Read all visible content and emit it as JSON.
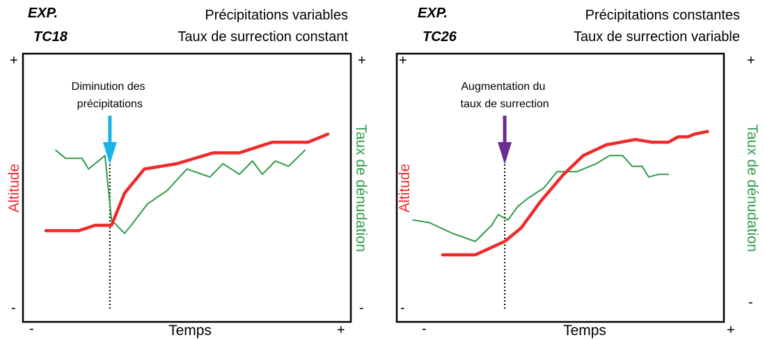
{
  "chart_data": [
    {
      "type": "line",
      "experiment_label": [
        "EXP.",
        "TC18"
      ],
      "conditions": [
        "Précipitations variables",
        "Taux de surrection constant"
      ],
      "xlabel": "Temps",
      "ylabel_left": "Altitude",
      "ylabel_right": "Taux de dénudation",
      "x_ticks": [
        "-",
        "+"
      ],
      "y_ticks_left": [
        "+",
        "-"
      ],
      "y_ticks_right": [
        "+",
        "-"
      ],
      "xlim": [
        0,
        100
      ],
      "ylim": [
        0,
        100
      ],
      "annotation": {
        "text": [
          "Diminution des",
          "précipitations"
        ],
        "x": 26.5,
        "arrow_color": "#1ab3e6"
      },
      "series": [
        {
          "name": "Altitude",
          "color": "#ee2a2a",
          "x": [
            7,
            17,
            22,
            27,
            31,
            37,
            47,
            58,
            66,
            76,
            87,
            93
          ],
          "y": [
            34,
            34,
            36,
            36,
            48,
            57,
            59,
            63,
            63,
            67,
            67,
            70
          ]
        },
        {
          "name": "Taux de dénudation",
          "color": "#2e9b48",
          "x": [
            10,
            13,
            18,
            20,
            25,
            27,
            31,
            33,
            38,
            44,
            50,
            57,
            61,
            66,
            70,
            73,
            77,
            81,
            86
          ],
          "y": [
            64,
            61,
            61,
            57,
            62,
            38,
            33,
            36,
            44,
            49,
            57,
            54,
            59,
            55,
            60,
            55,
            60,
            58,
            64
          ]
        }
      ]
    },
    {
      "type": "line",
      "experiment_label": [
        "EXP.",
        "TC26"
      ],
      "conditions": [
        "Précipitations constantes",
        "Taux de surrection variable"
      ],
      "xlabel": "Temps",
      "ylabel_left": "Altitude",
      "ylabel_right": "Taux de dénudation",
      "x_ticks": [
        "-",
        "+"
      ],
      "y_ticks_left": [
        "+",
        "-"
      ],
      "y_ticks_right": [
        "+",
        "-"
      ],
      "xlim": [
        0,
        100
      ],
      "ylim": [
        0,
        100
      ],
      "annotation": {
        "text": [
          "Augmentation du",
          "taux de surrection"
        ],
        "x": 33,
        "arrow_color": "#6a2d8f"
      },
      "series": [
        {
          "name": "Altitude",
          "color": "#ee2a2a",
          "x": [
            14,
            24,
            33,
            38,
            44,
            51,
            57,
            64,
            73,
            78,
            83,
            86,
            89,
            91,
            95
          ],
          "y": [
            25,
            25,
            30,
            35,
            45,
            55,
            62,
            66,
            68,
            67,
            67,
            69,
            69,
            70,
            71
          ]
        },
        {
          "name": "Taux de dénudation",
          "color": "#2e9b48",
          "x": [
            5,
            10,
            17,
            24,
            29,
            31,
            34,
            37,
            40,
            45,
            49,
            55,
            61,
            65,
            69,
            72,
            75,
            77,
            80,
            83
          ],
          "y": [
            38,
            37,
            33,
            30,
            36,
            40,
            38,
            43,
            46,
            50,
            56,
            56,
            59,
            62,
            62,
            58,
            58,
            54,
            55,
            55
          ]
        }
      ]
    }
  ]
}
